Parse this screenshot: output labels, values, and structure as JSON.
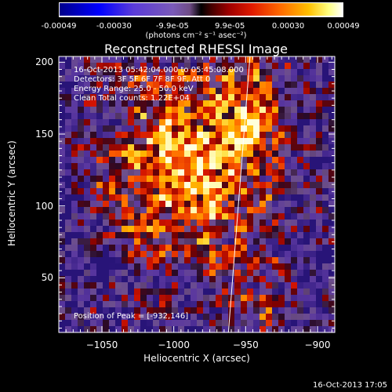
{
  "colorbar": {
    "tick_labels": [
      "-0.00049",
      "-0.00030",
      "-9.9e-05",
      "9.9e-05",
      "0.00030",
      "0.00049"
    ],
    "tick_values": [
      -0.00049,
      -0.0003,
      -9.9e-05,
      9.9e-05,
      0.0003,
      0.00049
    ],
    "unit_label": "(photons cm⁻² s⁻¹ asec⁻²)",
    "range": [
      -0.00049,
      0.00049
    ]
  },
  "chart_data": {
    "type": "heatmap",
    "title": "Reconstructed RHESSI Image",
    "xlabel": "Heliocentric X (arcsec)",
    "ylabel": "Heliocentric Y (arcsec)",
    "xlim": [
      -1080,
      -888
    ],
    "ylim": [
      12,
      204
    ],
    "xticks": [
      -1050,
      -1000,
      -950,
      -900
    ],
    "xtick_labels": [
      "−1050",
      "−1000",
      "−950",
      "−900"
    ],
    "yticks": [
      50,
      100,
      150,
      200
    ],
    "ytick_labels": [
      "50",
      "100",
      "150",
      "200"
    ],
    "grid": false,
    "peak": {
      "x": -932,
      "y": 146
    },
    "limb_line": {
      "x": [
        -962,
        -947
      ],
      "y": [
        12,
        204
      ]
    }
  },
  "annotations": {
    "time_range": "16-Oct-2013 05:42:04.000 to 05:45:08.000",
    "detectors": "Detectors: 3F 5F 6F 7F 8F 9F, Att 0",
    "energy_range": "Energy Range: 25.0 - 50.0 keV",
    "clean_counts": "Clean     Total counts: 1.22E+04",
    "peak_position": "Position of Peak = [-932,146]"
  },
  "footer": {
    "timestamp": "16-Oct-2013 17:05"
  },
  "colors": {
    "background": "#000000",
    "text": "#ffffff"
  }
}
